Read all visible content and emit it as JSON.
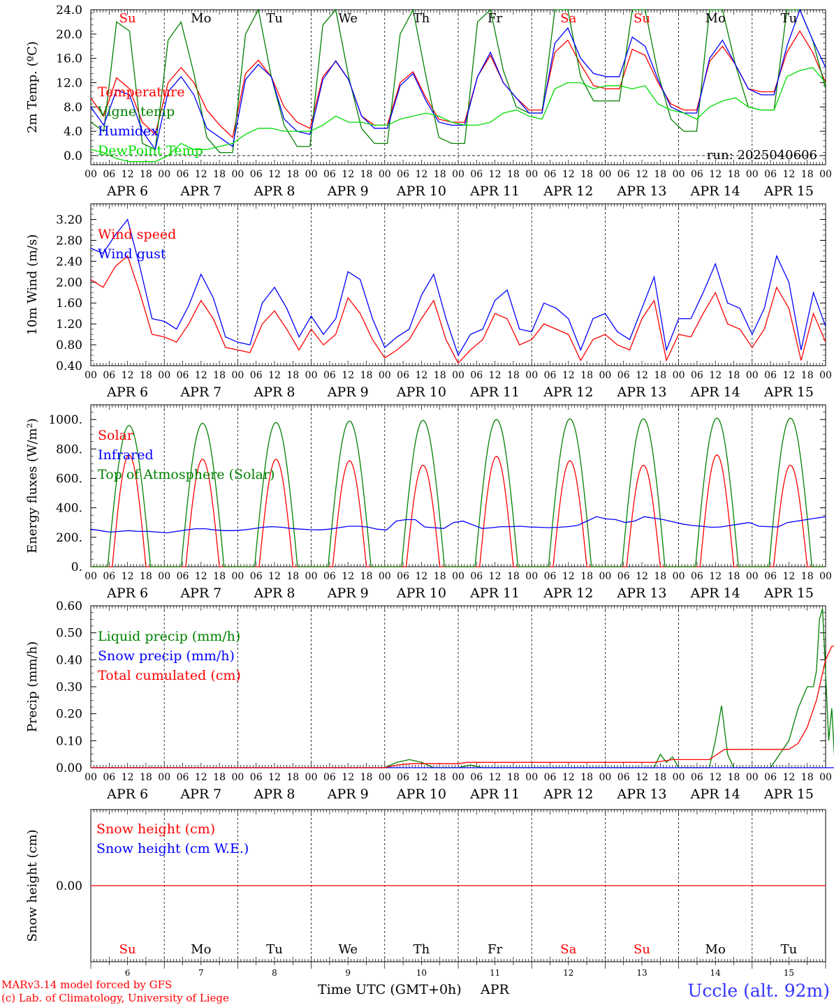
{
  "chart_data": [
    {
      "id": "temp",
      "type": "line",
      "ylabel": "2m Temp. (ºC)",
      "ylim": [
        -1.5,
        24.0
      ],
      "yticks": [
        "24.0",
        "20.0",
        "16.0",
        "12.0",
        "8.0",
        "4.0",
        "0.0"
      ],
      "ytick_values": [
        24,
        20,
        16,
        12,
        8,
        4,
        0
      ],
      "annotation": "run: 2025040606",
      "legend": [
        {
          "name": "Temperature",
          "color": "#ff0000"
        },
        {
          "name": "Vigne temp",
          "color": "#008000"
        },
        {
          "name": "Humidex",
          "color": "#0000ff"
        },
        {
          "name": "DewPoint Temp",
          "color": "#00dd00"
        }
      ],
      "series": [
        {
          "name": "Temperature",
          "color": "#ff0000",
          "values": [
            9.5,
            6.5,
            12.8,
            11.0,
            5.5,
            3.5,
            12.0,
            14.5,
            12.0,
            7.5,
            5.0,
            3.0,
            13.5,
            15.7,
            13.0,
            8.0,
            5.5,
            4.5,
            13.0,
            15.5,
            12.5,
            6.5,
            5.0,
            5.0,
            12.0,
            13.8,
            9.5,
            6.0,
            5.5,
            5.5,
            13.0,
            16.5,
            12.0,
            9.5,
            7.5,
            7.5,
            17.0,
            19.0,
            15.0,
            11.5,
            11.0,
            11.0,
            17.5,
            16.5,
            12.0,
            8.5,
            7.5,
            7.5,
            15.5,
            18.0,
            15.0,
            11.0,
            10.5,
            10.5,
            17.0,
            20.5,
            17.0,
            12.0
          ]
        },
        {
          "name": "Vigne temp",
          "color": "#008000",
          "values": [
            5.5,
            4.0,
            22.0,
            20.5,
            2.0,
            1.0,
            19.0,
            22.0,
            13.5,
            3.0,
            0.5,
            0.5,
            20.0,
            24.0,
            13.0,
            5.0,
            1.5,
            1.5,
            21.5,
            24.0,
            13.0,
            4.5,
            2.0,
            2.0,
            20.0,
            24.0,
            13.0,
            3.0,
            2.0,
            2.0,
            22.0,
            24.0,
            14.0,
            8.0,
            7.0,
            7.0,
            24.0,
            24.0,
            13.0,
            9.0,
            9.0,
            9.0,
            24.0,
            24.0,
            13.5,
            6.0,
            4.0,
            4.0,
            24.0,
            24.0,
            15.0,
            8.0,
            7.5,
            7.5,
            24.0,
            24.0,
            19.0,
            11.0
          ]
        },
        {
          "name": "Humidex",
          "color": "#0000ff",
          "values": [
            8.0,
            5.0,
            10.8,
            10.0,
            4.0,
            1.0,
            10.5,
            13.0,
            10.0,
            4.5,
            3.0,
            1.5,
            12.5,
            15.0,
            13.0,
            6.0,
            4.0,
            3.5,
            12.5,
            15.6,
            12.5,
            6.5,
            4.5,
            4.5,
            11.5,
            13.5,
            9.0,
            5.5,
            5.0,
            5.0,
            13.0,
            17.0,
            12.0,
            9.5,
            7.0,
            7.0,
            18.5,
            21.0,
            16.0,
            13.5,
            13.0,
            13.0,
            19.5,
            18.0,
            12.5,
            8.0,
            7.0,
            7.0,
            16.0,
            19.0,
            15.0,
            11.0,
            10.0,
            10.0,
            18.0,
            24.0,
            19.0,
            14.5
          ]
        },
        {
          "name": "DewPoint Temp",
          "color": "#00dd00",
          "values": [
            1.0,
            0.5,
            -0.5,
            -1.0,
            -1.0,
            -1.0,
            0.0,
            2.0,
            1.0,
            1.0,
            1.5,
            2.0,
            3.5,
            4.5,
            4.5,
            4.0,
            4.0,
            4.0,
            5.0,
            6.5,
            5.5,
            5.5,
            5.0,
            5.0,
            6.0,
            6.5,
            7.0,
            6.5,
            5.5,
            5.0,
            5.0,
            5.5,
            7.0,
            7.5,
            6.5,
            6.0,
            11.0,
            12.0,
            12.0,
            11.0,
            11.5,
            11.5,
            11.0,
            11.5,
            8.5,
            7.5,
            7.0,
            6.0,
            8.0,
            9.0,
            9.5,
            8.0,
            7.5,
            7.5,
            13.0,
            14.0,
            14.5,
            12.0
          ]
        }
      ]
    },
    {
      "id": "wind",
      "type": "line",
      "ylabel": "10m Wind (m/s)",
      "ylim": [
        0.4,
        3.5
      ],
      "yticks": [
        "3.20",
        "2.80",
        "2.40",
        "2.00",
        "1.60",
        "1.20",
        "0.80",
        "0.40"
      ],
      "ytick_values": [
        3.2,
        2.8,
        2.4,
        2.0,
        1.6,
        1.2,
        0.8,
        0.4
      ],
      "legend": [
        {
          "name": "Wind speed",
          "color": "#ff0000"
        },
        {
          "name": "Wind gust",
          "color": "#0000ff"
        }
      ],
      "series": [
        {
          "name": "Wind speed",
          "color": "#ff0000",
          "values": [
            2.05,
            1.9,
            2.3,
            2.5,
            1.8,
            1.0,
            0.95,
            0.85,
            1.2,
            1.65,
            1.3,
            0.75,
            0.7,
            0.65,
            1.2,
            1.45,
            1.1,
            0.7,
            1.1,
            0.8,
            1.0,
            1.7,
            1.4,
            0.9,
            0.55,
            0.7,
            0.9,
            1.3,
            1.65,
            0.9,
            0.45,
            0.7,
            0.9,
            1.4,
            1.3,
            0.8,
            0.9,
            1.2,
            1.1,
            1.0,
            0.5,
            0.9,
            1.0,
            0.8,
            0.7,
            1.3,
            1.65,
            0.5,
            1.0,
            0.95,
            1.4,
            1.8,
            1.2,
            1.1,
            0.75,
            1.1,
            1.9,
            1.5,
            0.5,
            1.4,
            0.85
          ]
        },
        {
          "name": "Wind gust",
          "color": "#0000ff",
          "values": [
            2.65,
            2.55,
            2.9,
            3.2,
            2.3,
            1.3,
            1.25,
            1.1,
            1.55,
            2.15,
            1.7,
            0.95,
            0.85,
            0.8,
            1.6,
            1.9,
            1.5,
            0.95,
            1.35,
            1.0,
            1.3,
            2.2,
            2.05,
            1.3,
            0.75,
            0.95,
            1.1,
            1.75,
            2.15,
            1.3,
            0.6,
            1.0,
            1.1,
            1.65,
            1.85,
            1.1,
            1.05,
            1.6,
            1.5,
            1.3,
            0.7,
            1.3,
            1.4,
            1.05,
            0.9,
            1.5,
            2.1,
            0.7,
            1.3,
            1.3,
            1.8,
            2.35,
            1.6,
            1.5,
            1.0,
            1.5,
            2.5,
            2.0,
            0.7,
            1.8,
            1.15
          ]
        }
      ]
    },
    {
      "id": "flux",
      "type": "line",
      "ylabel": "Energy fluxes (W/m²)",
      "ylim": [
        0,
        1100
      ],
      "yticks": [
        "1000.",
        "800.",
        "600.",
        "400.",
        "200.",
        "0."
      ],
      "ytick_values": [
        1000,
        800,
        600,
        400,
        200,
        0
      ],
      "legend": [
        {
          "name": "Solar",
          "color": "#ff0000"
        },
        {
          "name": "Infrared",
          "color": "#0000ff"
        },
        {
          "name": "Top of Atmosphere (Solar)",
          "color": "#008000"
        }
      ],
      "series": [
        {
          "name": "Solar",
          "color": "#ff0000",
          "day_peaks": [
            760,
            730,
            730,
            720,
            690,
            750,
            720,
            690,
            760,
            690
          ]
        },
        {
          "name": "Top of Atmosphere (Solar)",
          "color": "#008000",
          "day_peaks": [
            960,
            975,
            980,
            990,
            995,
            1000,
            1005,
            1005,
            1010,
            1010
          ]
        },
        {
          "name": "Infrared",
          "color": "#0000ff",
          "values": [
            255,
            245,
            235,
            240,
            245,
            240,
            240,
            235,
            230,
            240,
            250,
            258,
            258,
            250,
            245,
            245,
            250,
            258,
            268,
            272,
            268,
            260,
            255,
            252,
            250,
            255,
            265,
            275,
            275,
            270,
            255,
            250,
            310,
            320,
            320,
            270,
            265,
            260,
            300,
            310,
            285,
            260,
            265,
            272,
            272,
            275,
            270,
            268,
            265,
            268,
            272,
            280,
            310,
            340,
            325,
            320,
            300,
            310,
            340,
            330,
            320,
            305,
            290,
            280,
            275,
            268,
            270,
            280,
            290,
            300,
            275,
            272,
            270,
            300,
            310,
            320,
            330,
            340
          ]
        }
      ]
    },
    {
      "id": "precip",
      "type": "line",
      "ylabel": "Precip (mm/h)",
      "ylim": [
        0,
        0.6
      ],
      "yticks": [
        "0.60",
        "0.50",
        "0.40",
        "0.30",
        "0.20",
        "0.10",
        "0.00"
      ],
      "ytick_values": [
        0.6,
        0.5,
        0.4,
        0.3,
        0.2,
        0.1,
        0.0
      ],
      "legend": [
        {
          "name": "Liquid precip (mm/h)",
          "color": "#008000"
        },
        {
          "name": "Snow precip (mm/h)",
          "color": "#0000ff"
        },
        {
          "name": "Total cumulated (cm)",
          "color": "#ff0000"
        }
      ],
      "series": [
        {
          "name": "Liquid precip (mm/h)",
          "color": "#008000",
          "points": [
            [
              0,
              0
            ],
            [
              96,
              0
            ],
            [
              100,
              0.02
            ],
            [
              104,
              0.03
            ],
            [
              108,
              0.02
            ],
            [
              112,
              0
            ],
            [
              120,
              0
            ],
            [
              124,
              0.01
            ],
            [
              128,
              0
            ],
            [
              184,
              0
            ],
            [
              186,
              0.05
            ],
            [
              188,
              0.02
            ],
            [
              190,
              0.04
            ],
            [
              192,
              0
            ],
            [
              202,
              0
            ],
            [
              204,
              0.1
            ],
            [
              206,
              0.23
            ],
            [
              208,
              0.05
            ],
            [
              210,
              0
            ],
            [
              222,
              0
            ],
            [
              228,
              0.1
            ],
            [
              231,
              0.22
            ],
            [
              234,
              0.3
            ],
            [
              236,
              0.3
            ],
            [
              237,
              0.36
            ],
            [
              238,
              0.55
            ],
            [
              239,
              0.59
            ],
            [
              240,
              0.35
            ],
            [
              241,
              0.1
            ],
            [
              242,
              0.22
            ],
            [
              243,
              0.02
            ],
            [
              244,
              0
            ]
          ]
        },
        {
          "name": "Snow precip (mm/h)",
          "color": "#0000ff",
          "points": [
            [
              0,
              0
            ],
            [
              244,
              0
            ]
          ]
        },
        {
          "name": "Total cumulated (cm)",
          "color": "#ff0000",
          "points": [
            [
              0,
              0
            ],
            [
              96,
              0
            ],
            [
              100,
              0.01
            ],
            [
              105,
              0.015
            ],
            [
              120,
              0.015
            ],
            [
              123,
              0.02
            ],
            [
              184,
              0.02
            ],
            [
              190,
              0.03
            ],
            [
              202,
              0.03
            ],
            [
              207,
              0.068
            ],
            [
              228,
              0.068
            ],
            [
              231,
              0.09
            ],
            [
              234,
              0.15
            ],
            [
              237,
              0.25
            ],
            [
              240,
              0.4
            ],
            [
              242,
              0.45
            ],
            [
              244,
              0.45
            ]
          ]
        }
      ]
    },
    {
      "id": "snow",
      "type": "line",
      "ylabel": "Snow height (cm)",
      "yticks": [
        "0.00"
      ],
      "legend": [
        {
          "name": "Snow height (cm)",
          "color": "#ff0000"
        },
        {
          "name": "Snow height (cm W.E.)",
          "color": "#0000ff"
        }
      ],
      "series": [
        {
          "name": "Snow height (cm)",
          "color": "#ff0000",
          "values": [
            0,
            0
          ]
        }
      ]
    }
  ],
  "days": [
    {
      "weekday": "Su",
      "date_label": "APR  6",
      "num": "6",
      "weekend": true
    },
    {
      "weekday": "Mo",
      "date_label": "APR  7",
      "num": "7",
      "weekend": false
    },
    {
      "weekday": "Tu",
      "date_label": "APR  8",
      "num": "8",
      "weekend": false
    },
    {
      "weekday": "We",
      "date_label": "APR  9",
      "num": "9",
      "weekend": false
    },
    {
      "weekday": "Th",
      "date_label": "APR 10",
      "num": "10",
      "weekend": false
    },
    {
      "weekday": "Fr",
      "date_label": "APR 11",
      "num": "11",
      "weekend": false
    },
    {
      "weekday": "Sa",
      "date_label": "APR 12",
      "num": "12",
      "weekend": true
    },
    {
      "weekday": "Su",
      "date_label": "APR 13",
      "num": "13",
      "weekend": true
    },
    {
      "weekday": "Mo",
      "date_label": "APR 14",
      "num": "14",
      "weekend": false
    },
    {
      "weekday": "Tu",
      "date_label": "APR 15",
      "num": "15",
      "weekend": false
    }
  ],
  "hour_labels": [
    "00",
    "06",
    "12",
    "18"
  ],
  "footer": {
    "xlabel": "Time UTC (GMT+0h)",
    "month": "APR",
    "credit_model": "MARv3.14 model forced by GFS",
    "credit_lab": "(c) Lab. of Climatology, University of Liege",
    "station": "Uccle (alt. 92m)"
  },
  "colors": {
    "weekend": "#ff0000",
    "weekday": "#000000",
    "station": "#3333ff",
    "credit": "#ff0000"
  }
}
